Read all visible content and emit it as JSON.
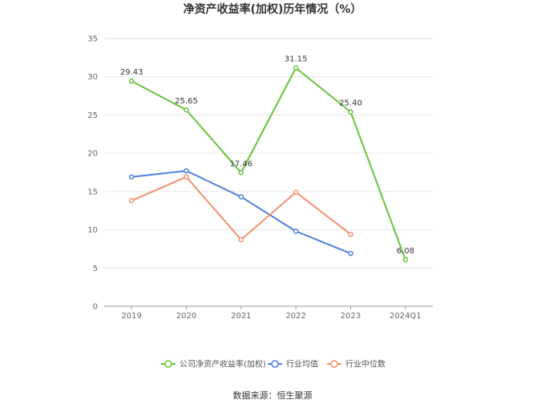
{
  "chart_data": {
    "type": "line",
    "title": "净资产收益率(加权)历年情况（%）",
    "categories": [
      "2019",
      "2020",
      "2021",
      "2022",
      "2023",
      "2024Q1"
    ],
    "ylim": [
      0,
      35
    ],
    "yticks": [
      0,
      5,
      10,
      15,
      20,
      25,
      30,
      35
    ],
    "grid": true,
    "legend_position": "bottom",
    "series": [
      {
        "name": "公司净资产收益率(加权)",
        "color": "#67c23a",
        "values": [
          29.43,
          25.65,
          17.46,
          31.15,
          25.4,
          6.08
        ],
        "labels": [
          "29.43",
          "25.65",
          "17.46",
          "31.15",
          "25.40",
          "6.08"
        ],
        "show_labels": true
      },
      {
        "name": "行业均值",
        "color": "#4e7fe0",
        "values": [
          16.9,
          17.7,
          14.3,
          9.8,
          6.9,
          null
        ],
        "show_labels": false
      },
      {
        "name": "行业中位数",
        "color": "#f0916a",
        "values": [
          13.8,
          16.9,
          8.7,
          14.9,
          9.4,
          null
        ],
        "show_labels": false
      }
    ]
  },
  "footer": {
    "source": "数据来源：恒生聚源"
  }
}
